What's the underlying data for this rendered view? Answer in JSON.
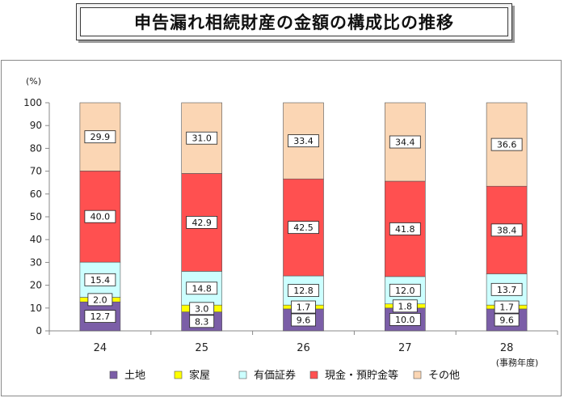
{
  "title": "申告漏れ相続財産の金額の構成比の推移",
  "chart_data": {
    "type": "bar",
    "stacked": true,
    "title": "申告漏れ相続財産の金額の構成比の推移",
    "ylabel": "(%)",
    "xlabel": "(事務年度)",
    "ylim": [
      0,
      100
    ],
    "yticks": [
      0,
      10,
      20,
      30,
      40,
      50,
      60,
      70,
      80,
      90,
      100
    ],
    "grid": false,
    "legend": "bottom",
    "categories": [
      "24",
      "25",
      "26",
      "27",
      "28"
    ],
    "series": [
      {
        "name": "土地",
        "color": "#7b5ea7",
        "values": [
          12.7,
          8.3,
          9.6,
          10.0,
          9.6
        ]
      },
      {
        "name": "家屋",
        "color": "#ffff00",
        "values": [
          2.0,
          3.0,
          1.7,
          1.8,
          1.7
        ]
      },
      {
        "name": "有価証券",
        "color": "#ccffff",
        "values": [
          15.4,
          14.8,
          12.8,
          12.0,
          13.7
        ]
      },
      {
        "name": "現金・預貯金等",
        "color": "#ff5050",
        "values": [
          40.0,
          42.9,
          42.5,
          41.8,
          38.4
        ]
      },
      {
        "name": "その他",
        "color": "#fbd6b4",
        "values": [
          29.9,
          31.0,
          33.4,
          34.4,
          36.6
        ]
      }
    ]
  }
}
